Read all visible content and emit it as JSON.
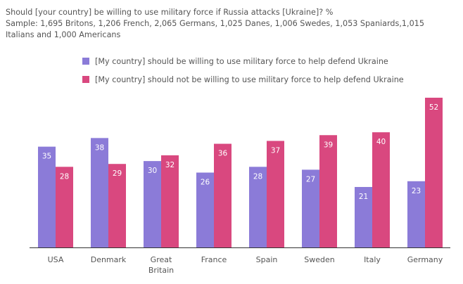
{
  "header": {
    "title_line": "Should [your country] be willing to use military force if Russia attacks [Ukraine]? %",
    "sample_line_1": "Sample: 1,695 Britons, 1,206 French, 2,065 Germans, 1,025 Danes, 1,006 Swedes, 1,053 Spaniards,1,015",
    "sample_line_2": "Italians and 1,000 Americans"
  },
  "legend": [
    {
      "label": "[My country] should be willing to use military force to help defend Ukraine",
      "color": "#8b7bd8"
    },
    {
      "label": "[My country] should not be willing to use military force to help defend Ukraine",
      "color": "#d9487f"
    }
  ],
  "chart_data": {
    "type": "bar",
    "title": "Should [your country] be willing to use military force if Russia attacks [Ukraine]? %",
    "categories": [
      [
        "USA"
      ],
      [
        "Denmark"
      ],
      [
        "Great",
        "Britain"
      ],
      [
        "France"
      ],
      [
        "Spain"
      ],
      [
        "Sweden"
      ],
      [
        "Italy"
      ],
      [
        "Germany"
      ]
    ],
    "series": [
      {
        "name": "[My country] should be willing to use military force to help defend Ukraine",
        "color": "#8b7bd8",
        "values": [
          35,
          38,
          30,
          26,
          28,
          27,
          21,
          23
        ]
      },
      {
        "name": "[My country] should not be willing to use military force to help defend Ukraine",
        "color": "#d9487f",
        "values": [
          28,
          29,
          32,
          36,
          37,
          39,
          40,
          52
        ]
      }
    ],
    "ylim": [
      0,
      52
    ],
    "grid": false,
    "legend_position": "top-left"
  }
}
